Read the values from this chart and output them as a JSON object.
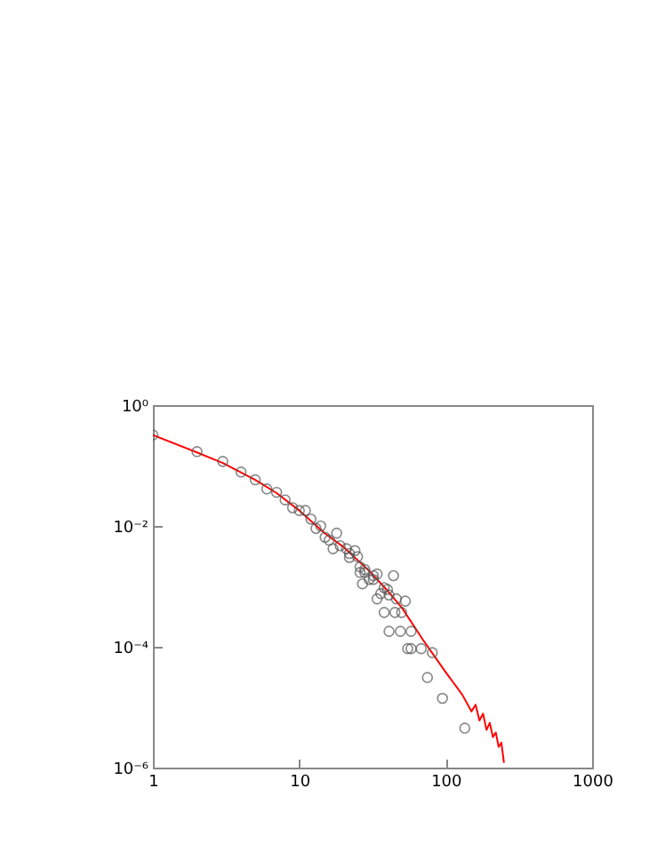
{
  "chart_data": {
    "type": "scatter",
    "log": "xy",
    "grid": false,
    "xlim": [
      1,
      1000
    ],
    "xticks": [
      1,
      10,
      100,
      1000
    ],
    "ylim": [
      1e-06,
      1
    ],
    "yticks": [
      {
        "value": 1,
        "label": "10⁰"
      },
      {
        "value": 0.01,
        "label": "10⁻²"
      },
      {
        "value": 0.0001,
        "label": "10⁻⁴"
      },
      {
        "value": 1e-06,
        "label": "10⁻⁶"
      }
    ],
    "series": [
      {
        "type": "line",
        "color": "#ff0000",
        "marker": "none",
        "line_style": "solid",
        "x": [
          1,
          2,
          3,
          5,
          7,
          10,
          15,
          20,
          30,
          40,
          50,
          70,
          100,
          130,
          150,
          160,
          170,
          180,
          190,
          200,
          210,
          220,
          230,
          240,
          250
        ],
        "values": [
          0.32,
          0.165,
          0.11,
          0.058,
          0.035,
          0.018,
          0.0075,
          0.0045,
          0.0018,
          0.00085,
          0.00045,
          0.00013,
          3.8e-05,
          1.6e-05,
          8.5e-06,
          1.1e-05,
          6e-06,
          7.8e-06,
          4.2e-06,
          5.5e-06,
          3.2e-06,
          3.8e-06,
          2.2e-06,
          2.6e-06,
          1.2e-06
        ]
      },
      {
        "color": "#555555",
        "marker": "circle",
        "x": [
          1,
          2,
          3,
          4,
          5,
          6,
          7,
          8,
          9,
          10,
          11,
          12,
          13,
          14,
          15,
          16,
          17,
          18,
          19,
          21,
          22,
          24,
          25,
          22,
          26,
          28,
          27,
          30,
          32,
          34,
          26,
          28,
          32,
          34,
          44,
          38,
          40,
          36,
          41,
          46,
          53,
          38,
          45,
          50,
          41,
          49,
          58,
          55,
          58,
          68,
          81,
          75,
          95,
          135
        ],
        "values": [
          0.32,
          0.17,
          0.117,
          0.078,
          0.058,
          0.041,
          0.036,
          0.027,
          0.02,
          0.018,
          0.018,
          0.013,
          0.0091,
          0.01,
          0.0065,
          0.0058,
          0.0042,
          0.0076,
          0.0047,
          0.0042,
          0.0035,
          0.0039,
          0.0031,
          0.003,
          0.0017,
          0.0019,
          0.0011,
          0.0013,
          0.0015,
          0.00062,
          0.0021,
          0.0017,
          0.0013,
          0.0016,
          0.0015,
          0.00095,
          0.00089,
          0.00076,
          0.00072,
          0.00062,
          0.00057,
          0.00037,
          0.00037,
          0.00037,
          0.00018,
          0.00018,
          0.00018,
          9.3e-05,
          9.3e-05,
          9.3e-05,
          8e-05,
          3.1e-05,
          1.4e-05,
          4.5e-06
        ]
      }
    ]
  }
}
